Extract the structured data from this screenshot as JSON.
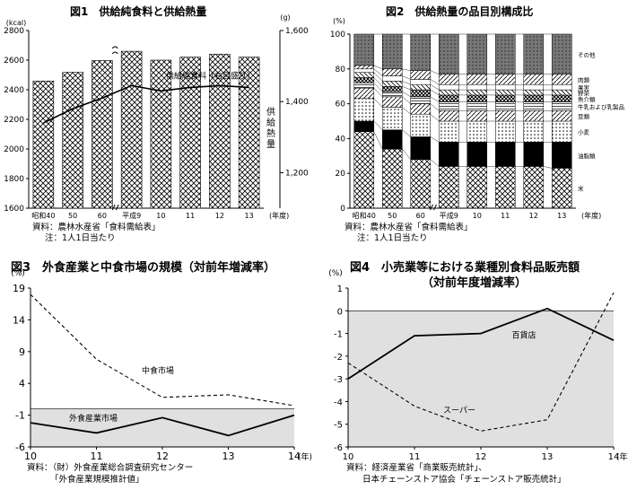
{
  "fig1": {
    "title": "図1　供給純食料と供給熱量",
    "source": "資料：農林水産省「食料需給表」",
    "note": "注：1人1日当たり",
    "chart_data": {
      "type": "bar",
      "categories": [
        "昭和40",
        "50",
        "60",
        "平成9",
        "10",
        "11",
        "12",
        "13"
      ],
      "x_suffix": "(年度)",
      "left_axis": {
        "unit": "(kcal)",
        "ylim": [
          1600,
          2800
        ],
        "ticks": [
          1600,
          1800,
          2000,
          2200,
          2400,
          2600,
          2800
        ]
      },
      "right_axis": {
        "unit": "(g)",
        "ylim": [
          1100,
          1600
        ],
        "ticks": [
          1200,
          1400,
          1600
        ],
        "tick_labels": [
          "1,200",
          "1,400",
          "1,600"
        ]
      },
      "series": [
        {
          "name": "供給熱量",
          "axis": "left",
          "type": "bar",
          "values": [
            2459,
            2518,
            2597,
            2660,
            2600,
            2620,
            2640,
            2620
          ]
        },
        {
          "name": "供給純食料（右目盛り）",
          "axis": "right",
          "type": "line",
          "values": [
            1340,
            1380,
            1410,
            1445,
            1430,
            1440,
            1445,
            1440
          ]
        }
      ]
    }
  },
  "fig2": {
    "title": "図2　供給熱量の品目別構成比",
    "source": "資料：農林水産省「食料需給表」",
    "note": "注：1人1日当たり",
    "chart_data": {
      "type": "bar",
      "stacked": true,
      "categories": [
        "昭和40",
        "50",
        "60",
        "平成9",
        "10",
        "11",
        "12",
        "13"
      ],
      "x_suffix": "(年度)",
      "y_unit": "(%)",
      "ylim": [
        0,
        100
      ],
      "yticks": [
        0,
        20,
        40,
        60,
        80,
        100
      ],
      "series": [
        {
          "name": "米",
          "values": [
            44,
            34,
            28,
            24,
            24,
            24,
            24,
            23
          ]
        },
        {
          "name": "油脂類",
          "values": [
            6,
            11,
            13,
            14,
            14,
            14,
            14,
            15
          ]
        },
        {
          "name": "小麦",
          "values": [
            13,
            13,
            13,
            12,
            12,
            12,
            12,
            12
          ]
        },
        {
          "name": "豆類",
          "values": [
            6,
            6,
            6,
            6,
            6,
            6,
            6,
            6
          ]
        },
        {
          "name": "牛乳および乳製品",
          "values": [
            3,
            3,
            4,
            5,
            5,
            5,
            5,
            5
          ]
        },
        {
          "name": "魚介類",
          "values": [
            3,
            3,
            4,
            4,
            4,
            4,
            4,
            4
          ]
        },
        {
          "name": "野菜",
          "values": [
            3,
            3,
            3,
            3,
            3,
            3,
            3,
            3
          ]
        },
        {
          "name": "果実",
          "values": [
            2,
            3,
            3,
            3,
            3,
            3,
            3,
            3
          ]
        },
        {
          "name": "肉類",
          "values": [
            2,
            4,
            5,
            6,
            6,
            6,
            6,
            6
          ]
        },
        {
          "name": "その他",
          "values": [
            18,
            20,
            21,
            23,
            23,
            23,
            23,
            23
          ]
        }
      ]
    }
  },
  "fig3": {
    "title": "図3　外食産業と中食市場の規模（対前年増減率）",
    "source_line1": "資料：（財）外食産業総合調査研究センター",
    "source_line2": "「外食産業規模推計値」",
    "chart_data": {
      "type": "line",
      "x": [
        "10",
        "11",
        "12",
        "13",
        "14"
      ],
      "x_suffix": "(年)",
      "y_unit": "(%)",
      "ylim": [
        -6,
        19
      ],
      "yticks": [
        -6,
        -1,
        4,
        9,
        14,
        19
      ],
      "series": [
        {
          "name": "中食市場",
          "style": "dashed",
          "values": [
            18,
            7.8,
            1.8,
            2.2,
            0.5
          ]
        },
        {
          "name": "外食産業市場",
          "style": "solid",
          "values": [
            -2.2,
            -3.8,
            -1.4,
            -4.2,
            -1
          ]
        }
      ]
    }
  },
  "fig4": {
    "title_line1": "図4　小売業等における業種別食料品販売額",
    "title_line2": "（対前年度増減率）",
    "source_line1": "資料：経済産業省「商業販売統計」、",
    "source_line2": "日本チェーンストア協会「チェーンストア販売統計」",
    "chart_data": {
      "type": "line",
      "x": [
        "10",
        "11",
        "12",
        "13",
        "14"
      ],
      "x_suffix": "(年)",
      "y_unit": "(%)",
      "ylim": [
        -6,
        1
      ],
      "yticks": [
        -6,
        -5,
        -4,
        -3,
        -2,
        -1,
        0,
        1
      ],
      "series": [
        {
          "name": "百貨店",
          "style": "solid",
          "values": [
            -3,
            -1.1,
            -1,
            0.1,
            -1.3
          ]
        },
        {
          "name": "スーパー",
          "style": "dashed",
          "values": [
            -2.3,
            -4.2,
            -5.3,
            -4.8,
            0.8
          ]
        }
      ]
    }
  }
}
